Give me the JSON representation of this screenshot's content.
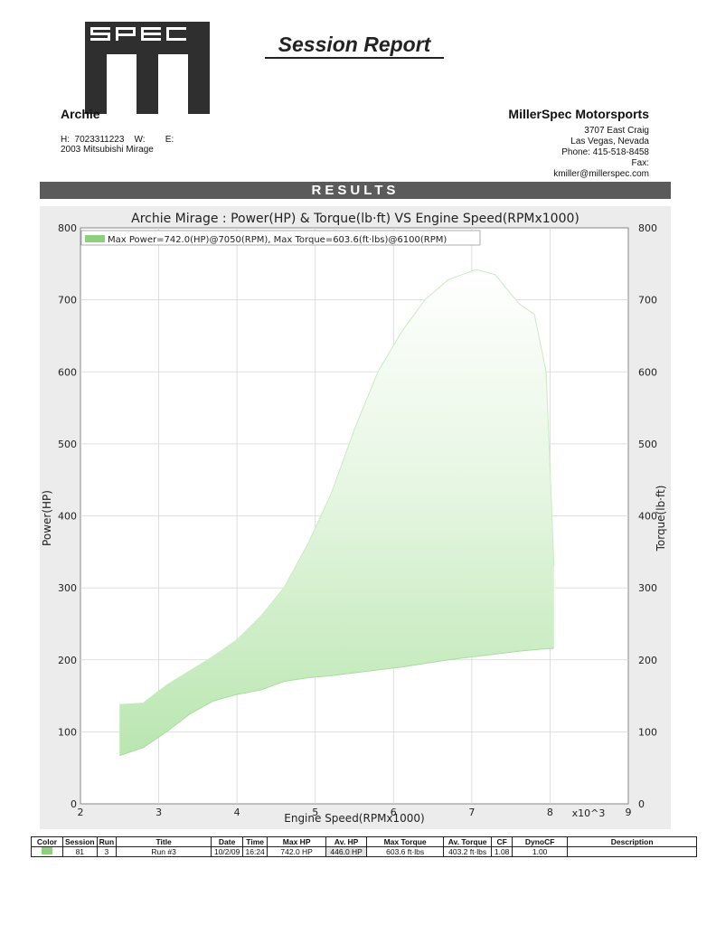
{
  "header": {
    "report_title": "Session Report",
    "customer_name": "Archie",
    "customer_phone": "H:  7023311223    W:        E:",
    "vehicle": "2003 Mitsubishi Mirage"
  },
  "shop": {
    "name": "MillerSpec Motorsports",
    "address1": "3707 East Craig",
    "address2": "Las Vegas, Nevada",
    "phone": "Phone: 415-518-8458",
    "fax": "Fax:",
    "email": "kmiller@millerspec.com"
  },
  "results_bar": "RESULTS",
  "chart_data": {
    "type": "area",
    "title": "Archie Mirage : Power(HP) & Torque(lb·ft) VS Engine Speed(RPMx1000)",
    "xlabel": "Engine Speed(RPMx1000)",
    "x_multiplier": "x10^3",
    "ylabel_left": "Power(HP)",
    "ylabel_right": "Torque(lb·ft)",
    "xlim": [
      2,
      9
    ],
    "ylim": [
      0,
      800
    ],
    "x_ticks": [
      2,
      3,
      4,
      5,
      6,
      7,
      8,
      9
    ],
    "y_ticks": [
      0,
      100,
      200,
      300,
      400,
      500,
      600,
      700,
      800
    ],
    "grid": true,
    "legend_position": "top-left",
    "legend": "Max Power=742.0(HP)@7050(RPM), Max Torque=603.6(ft·lbs)@6100(RPM)",
    "fill_color": "#b9e6b0",
    "series": [
      {
        "name": "Max Power=742.0(HP)@7050(RPM), Max Torque=603.6(ft·lbs)@6100(RPM)",
        "upper": {
          "x": [
            2.5,
            2.8,
            3.1,
            3.4,
            3.7,
            4.0,
            4.3,
            4.6,
            4.9,
            5.2,
            5.5,
            5.8,
            6.1,
            6.4,
            6.7,
            7.05,
            7.3,
            7.6,
            7.8,
            7.95,
            8.05
          ],
          "y": [
            138,
            140,
            165,
            185,
            205,
            228,
            260,
            300,
            360,
            430,
            520,
            600,
            655,
            700,
            728,
            742,
            735,
            695,
            680,
            600,
            330
          ]
        },
        "lower": {
          "x": [
            2.5,
            2.8,
            3.1,
            3.4,
            3.7,
            4.0,
            4.3,
            4.6,
            4.9,
            5.2,
            5.5,
            5.8,
            6.1,
            6.4,
            6.7,
            7.0,
            7.3,
            7.6,
            7.9,
            8.05
          ],
          "y": [
            67,
            78,
            100,
            125,
            143,
            152,
            158,
            170,
            175,
            178,
            182,
            186,
            190,
            195,
            200,
            204,
            208,
            212,
            215,
            216
          ]
        }
      }
    ]
  },
  "table": {
    "headers": [
      "Color",
      "Session",
      "Run",
      "Title",
      "Date",
      "Time",
      "Max HP",
      "Av. HP",
      "Max Torque",
      "Av. Torque",
      "CF",
      "DynoCF",
      "Description"
    ],
    "row": {
      "session": "81",
      "run": "3",
      "title": "Run #3",
      "date": "10/2/09",
      "time": "16:24",
      "max_hp": "742.0 HP",
      "av_hp": "446.0 HP",
      "max_torque": "603.6 ft·lbs",
      "av_torque": "403.2 ft·lbs",
      "cf": "1.08",
      "dynocf": "1.00",
      "description": ""
    },
    "swatch_color": "#8fd07f"
  }
}
